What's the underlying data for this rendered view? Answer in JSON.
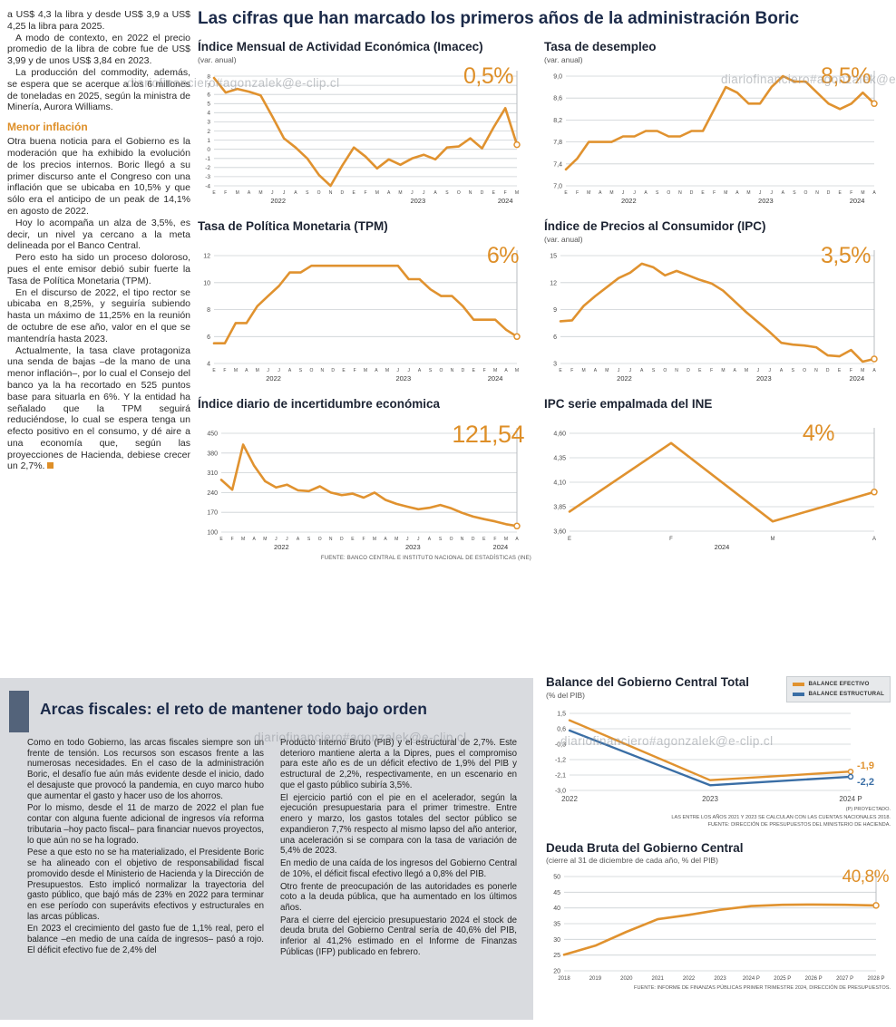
{
  "watermark": "diariofinanciero#agonzalek@e-clip.cl",
  "colors": {
    "accent_orange": "#DE8F28",
    "line_orange": "#E0922F",
    "line_blue": "#3A6EA5",
    "headline_navy": "#1B2A49",
    "panel_gray": "#D9DBDF",
    "titlebar_slate": "#53637A"
  },
  "article": {
    "paragraphs": [
      "a US$ 4,3 la libra y desde US$ 3,9 a US$ 4,25 la libra para 2025.",
      "A modo de contexto, en 2022 el precio promedio de la libra de cobre fue de US$ 3,99 y de unos US$ 3,84 en 2023.",
      "La producción del commodity, además, se espera que se acerque a los 6 millones de toneladas en 2025, según la ministra de Minería, Aurora Williams."
    ],
    "inflation_heading": "Menor inflación",
    "inflation_paragraphs": [
      "Otra buena noticia para el Gobierno es la moderación que ha exhibido la evolución de los precios internos. Boric llegó a su primer discurso ante el Congreso con una inflación que se ubicaba en 10,5% y que sólo era el anticipo de un peak de 14,1% en agosto de 2022.",
      "Hoy lo acompaña un alza de 3,5%, es decir, un nivel ya cercano a la meta delineada por el Banco Central.",
      "Pero esto ha sido un proceso doloroso, pues el ente emisor debió subir fuerte la Tasa de Política Monetaria (TPM).",
      "En el discurso de 2022, el tipo rector se ubicaba en 8,25%, y seguiría subiendo hasta un máximo de 11,25% en la reunión de octubre de ese año, valor en el que se mantendría hasta 2023.",
      "Actualmente, la tasa clave protagoniza una senda de bajas –de la mano de una menor inflación–, por lo cual el Consejo del banco ya la ha recortado en 525 puntos base para situarla en 6%. Y la entidad ha señalado que la TPM seguirá reduciéndose, lo cual se espera tenga un efecto positivo en el consumo, y dé aire a una economía que, según las proyecciones de Hacienda, debiese crecer un 2,7%."
    ]
  },
  "main": {
    "headline": "Las cifras que han marcado los primeros años de la administración Boric",
    "source_top": "FUENTE: BANCO CENTRAL E INSTITUTO NACIONAL DE ESTADÍSTICAS (INE)"
  },
  "fiscal": {
    "title": "Arcas fiscales: el reto de mantener todo bajo orden",
    "col1": [
      "Como en todo Gobierno, las arcas fiscales siempre son un frente de tensión. Los recursos son escasos frente a las numerosas necesidades. En el caso de la administración Boric, el desafío fue aún más evidente desde el inicio, dado el desajuste que provocó la pandemia, en cuyo marco hubo que aumentar el gasto y hacer uso de los ahorros.",
      "Por lo mismo, desde el 11 de marzo de 2022 el plan fue contar con alguna fuente adicional de ingresos vía reforma tributaria –hoy pacto fiscal– para financiar nuevos proyectos, lo que aún no se ha logrado.",
      "Pese a que esto no se ha materializado, el Presidente Boric se ha alineado con el objetivo de responsabilidad fiscal promovido desde el Ministerio de Hacienda y la Dirección de Presupuestos. Esto implicó normalizar la trayectoria del gasto público, que bajó más de 23% en 2022 para terminar en ese período con superávits efectivos y estructurales en las arcas públicas.",
      "En 2023 el crecimiento del gasto fue de 1,1% real, pero el balance –en medio de una caída de ingresos– pasó a rojo. El déficit efectivo fue de 2,4% del"
    ],
    "col2": [
      "Producto Interno Bruto (PIB) y el estructural de 2,7%. Este deterioro mantiene alerta a la Dipres, pues el compromiso para este año es de un déficit efectivo de 1,9% del PIB y estructural de 2,2%, respectivamente, en un escenario en que el gasto público subiría 3,5%.",
      "El ejercicio partió con el pie en el acelerador, según la ejecución presupuestaria para el primer trimestre. Entre enero y marzo, los gastos totales del sector público se expandieron 7,7% respecto al mismo lapso del año anterior, una aceleración si se compara con la tasa de variación de 5,4% de 2023.",
      "En medio de una caída de los ingresos del Gobierno Central de 10%, el déficit fiscal efectivo llegó a 0,8% del PIB.",
      "Otro frente de preocupación de las autoridades es ponerle coto a la deuda pública, que ha aumentado en los últimos años.",
      "Para el cierre del ejercicio presupuestario 2024 el stock de deuda bruta del Gobierno Central sería de 40,6% del PIB, inferior al 41,2% estimado en el Informe de Finanzas Públicas (IFP) publicado en febrero."
    ]
  },
  "legend": [
    {
      "label": "BALANCE EFECTIVO",
      "color": "#E0922F"
    },
    {
      "label": "BALANCE ESTRUCTURAL",
      "color": "#3A6EA5"
    }
  ],
  "balance_notes": [
    "(P) PROYECTADO.",
    "LAS ENTRE LOS AÑOS 2021 Y 2023 SE CALCULAN CON LAS CUENTAS NACIONALES 2018.",
    "FUENTE: DIRECCIÓN DE PRESUPUESTOS DEL MINISTERIO DE HACIENDA."
  ],
  "deuda_source": "FUENTE: INFORME DE FINANZAS PÚBLICAS PRIMER TRIMESTRE 2024, DIRECCIÓN DE PRESUPUESTOS.",
  "chart_data": [
    {
      "type": "line",
      "title": "Índice Mensual de Actividad Económica (Imacec)",
      "subtitle": "(var. anual)",
      "callout": "0,5%",
      "color": "#E0922F",
      "ylim": [
        -4,
        8
      ],
      "yticks": [
        {
          "v": 8,
          "l": "8"
        },
        {
          "v": 7,
          "l": "7"
        },
        {
          "v": 6,
          "l": "6"
        },
        {
          "v": 5,
          "l": "5"
        },
        {
          "v": 4,
          "l": "4"
        },
        {
          "v": 3,
          "l": "3"
        },
        {
          "v": 2,
          "l": "2"
        },
        {
          "v": 1,
          "l": "1"
        },
        {
          "v": 0,
          "l": "0"
        },
        {
          "v": -1,
          "l": "-1"
        },
        {
          "v": -2,
          "l": "-2"
        },
        {
          "v": -3,
          "l": "-3"
        },
        {
          "v": -4,
          "l": "-4"
        }
      ],
      "xlabels": [
        "E",
        "F",
        "M",
        "A",
        "M",
        "J",
        "J",
        "A",
        "S",
        "O",
        "N",
        "D",
        "E",
        "F",
        "M",
        "A",
        "M",
        "J",
        "J",
        "A",
        "S",
        "O",
        "N",
        "D",
        "E",
        "F",
        "M"
      ],
      "years": [
        {
          "label": "2022",
          "from": 0,
          "to": 11
        },
        {
          "label": "2023",
          "from": 12,
          "to": 23
        },
        {
          "label": "2024",
          "from": 24,
          "to": 26
        }
      ],
      "values": [
        7.8,
        6.2,
        6.6,
        6.3,
        5.9,
        3.6,
        1.2,
        0.2,
        -1.0,
        -2.8,
        -4.0,
        -1.8,
        0.2,
        -0.8,
        -2.1,
        -1.1,
        -1.7,
        -1.0,
        -0.6,
        -1.1,
        0.2,
        0.3,
        1.2,
        0.1,
        2.4,
        4.5,
        0.5
      ]
    },
    {
      "type": "line",
      "title": "Tasa de desempleo",
      "subtitle": "(var. anual)",
      "callout": "8,5%",
      "color": "#E0922F",
      "ylim": [
        7.0,
        9.0
      ],
      "yticks": [
        {
          "v": 9.0,
          "l": "9,0"
        },
        {
          "v": 8.6,
          "l": "8,6"
        },
        {
          "v": 8.2,
          "l": "8,2"
        },
        {
          "v": 7.8,
          "l": "7,8"
        },
        {
          "v": 7.4,
          "l": "7,4"
        },
        {
          "v": 7.0,
          "l": "7,0"
        }
      ],
      "xlabels": [
        "E",
        "F",
        "M",
        "A",
        "M",
        "J",
        "J",
        "A",
        "S",
        "O",
        "N",
        "D",
        "E",
        "F",
        "M",
        "A",
        "M",
        "J",
        "J",
        "A",
        "S",
        "O",
        "N",
        "D",
        "E",
        "F",
        "M",
        "A"
      ],
      "years": [
        {
          "label": "2022",
          "from": 0,
          "to": 11
        },
        {
          "label": "2023",
          "from": 12,
          "to": 23
        },
        {
          "label": "2024",
          "from": 24,
          "to": 27
        }
      ],
      "values": [
        7.3,
        7.5,
        7.8,
        7.8,
        7.8,
        7.9,
        7.9,
        8.0,
        8.0,
        7.9,
        7.9,
        8.0,
        8.0,
        8.4,
        8.8,
        8.7,
        8.5,
        8.5,
        8.8,
        9.0,
        8.9,
        8.9,
        8.7,
        8.5,
        8.4,
        8.5,
        8.7,
        8.5
      ]
    },
    {
      "type": "line",
      "title": "Tasa de Política Monetaria (TPM)",
      "subtitle": "",
      "callout": "6%",
      "color": "#E0922F",
      "ylim": [
        4,
        12
      ],
      "yticks": [
        {
          "v": 12,
          "l": "12"
        },
        {
          "v": 10,
          "l": "10"
        },
        {
          "v": 8,
          "l": "8"
        },
        {
          "v": 6,
          "l": "6"
        },
        {
          "v": 4,
          "l": "4"
        }
      ],
      "xlabels": [
        "E",
        "F",
        "M",
        "A",
        "M",
        "J",
        "J",
        "A",
        "S",
        "O",
        "N",
        "D",
        "E",
        "F",
        "M",
        "A",
        "M",
        "J",
        "J",
        "A",
        "S",
        "O",
        "N",
        "D",
        "E",
        "F",
        "M",
        "A",
        "M"
      ],
      "years": [
        {
          "label": "2022",
          "from": 0,
          "to": 11
        },
        {
          "label": "2023",
          "from": 12,
          "to": 23
        },
        {
          "label": "2024",
          "from": 24,
          "to": 28
        }
      ],
      "values": [
        5.5,
        5.5,
        7.0,
        7.0,
        8.25,
        9.0,
        9.75,
        10.75,
        10.75,
        11.25,
        11.25,
        11.25,
        11.25,
        11.25,
        11.25,
        11.25,
        11.25,
        11.25,
        10.25,
        10.25,
        9.5,
        9.0,
        9.0,
        8.25,
        7.25,
        7.25,
        7.25,
        6.5,
        6.0
      ]
    },
    {
      "type": "line",
      "title": "Índice de Precios al Consumidor (IPC)",
      "subtitle": "(var. anual)",
      "callout": "3,5%",
      "color": "#E0922F",
      "ylim": [
        3,
        15
      ],
      "yticks": [
        {
          "v": 15,
          "l": "15"
        },
        {
          "v": 12,
          "l": "12"
        },
        {
          "v": 9,
          "l": "9"
        },
        {
          "v": 6,
          "l": "6"
        },
        {
          "v": 3,
          "l": "3"
        }
      ],
      "xlabels": [
        "E",
        "F",
        "M",
        "A",
        "M",
        "J",
        "J",
        "A",
        "S",
        "O",
        "N",
        "D",
        "E",
        "F",
        "M",
        "A",
        "M",
        "J",
        "J",
        "A",
        "S",
        "O",
        "N",
        "D",
        "E",
        "F",
        "M",
        "A"
      ],
      "years": [
        {
          "label": "2022",
          "from": 0,
          "to": 11
        },
        {
          "label": "2023",
          "from": 12,
          "to": 23
        },
        {
          "label": "2024",
          "from": 24,
          "to": 27
        }
      ],
      "values": [
        7.7,
        7.8,
        9.4,
        10.5,
        11.5,
        12.5,
        13.1,
        14.1,
        13.7,
        12.8,
        13.3,
        12.8,
        12.3,
        11.9,
        11.1,
        9.9,
        8.7,
        7.6,
        6.5,
        5.3,
        5.1,
        5.0,
        4.8,
        3.9,
        3.8,
        4.5,
        3.2,
        3.5
      ]
    },
    {
      "type": "line",
      "title": "Índice diario de incertidumbre económica",
      "subtitle": "",
      "callout": "121,54",
      "color": "#E0922F",
      "ylim": [
        100,
        450
      ],
      "yticks": [
        {
          "v": 450,
          "l": "450"
        },
        {
          "v": 380,
          "l": "380"
        },
        {
          "v": 310,
          "l": "310"
        },
        {
          "v": 240,
          "l": "240"
        },
        {
          "v": 170,
          "l": "170"
        },
        {
          "v": 100,
          "l": "100"
        }
      ],
      "xlabels": [
        "E",
        "F",
        "M",
        "A",
        "M",
        "J",
        "J",
        "A",
        "S",
        "O",
        "N",
        "D",
        "E",
        "F",
        "M",
        "A",
        "M",
        "J",
        "J",
        "A",
        "S",
        "O",
        "N",
        "D",
        "E",
        "F",
        "M",
        "A"
      ],
      "years": [
        {
          "label": "2022",
          "from": 0,
          "to": 11
        },
        {
          "label": "2023",
          "from": 12,
          "to": 23
        },
        {
          "label": "2024",
          "from": 24,
          "to": 27
        }
      ],
      "values": [
        285,
        250,
        410,
        335,
        280,
        258,
        268,
        248,
        245,
        262,
        240,
        231,
        236,
        222,
        240,
        214,
        200,
        190,
        181,
        186,
        196,
        184,
        168,
        155,
        146,
        138,
        128,
        121.54
      ]
    },
    {
      "type": "line",
      "title": "IPC serie empalmada del INE",
      "subtitle": "",
      "callout": "4%",
      "color": "#E0922F",
      "ylim": [
        3.6,
        4.6
      ],
      "yticks": [
        {
          "v": 4.6,
          "l": "4,60"
        },
        {
          "v": 4.35,
          "l": "4,35"
        },
        {
          "v": 4.1,
          "l": "4,10"
        },
        {
          "v": 3.85,
          "l": "3,85"
        },
        {
          "v": 3.6,
          "l": "3,60"
        }
      ],
      "xlabels": [
        "E",
        "F",
        "M",
        "A"
      ],
      "years": [
        {
          "label": "2024",
          "from": 0,
          "to": 3
        }
      ],
      "values": [
        3.8,
        4.5,
        3.7,
        4.0
      ]
    },
    {
      "type": "line",
      "title": "Balance del Gobierno Central Total",
      "subtitle": "(% del PIB)",
      "ylim": [
        -3.0,
        1.5
      ],
      "yticks": [
        {
          "v": 1.5,
          "l": "1,5"
        },
        {
          "v": 0.6,
          "l": "0,6"
        },
        {
          "v": -0.3,
          "l": "-0,3"
        },
        {
          "v": -1.2,
          "l": "-1,2"
        },
        {
          "v": -2.1,
          "l": "-2,1"
        },
        {
          "v": -3.0,
          "l": "-3,0"
        }
      ],
      "xlabels": [
        "2022",
        "2023",
        "2024 P"
      ],
      "series": [
        {
          "name": "Balance Efectivo",
          "color": "#E0922F",
          "values": [
            1.1,
            -2.4,
            -1.9
          ],
          "end_label": "-1,9",
          "end_label_dy": -3
        },
        {
          "name": "Balance Estructural",
          "color": "#3A6EA5",
          "values": [
            0.5,
            -2.7,
            -2.2
          ],
          "end_label": "-2,2",
          "end_label_dy": 9
        }
      ]
    },
    {
      "type": "line",
      "title": "Deuda Bruta del Gobierno Central",
      "subtitle": "(cierre al 31 de diciembre de cada año, % del PIB)",
      "callout": "40,8%",
      "color": "#E0922F",
      "ylim": [
        20,
        50
      ],
      "yticks": [
        {
          "v": 50,
          "l": "50"
        },
        {
          "v": 45,
          "l": "45"
        },
        {
          "v": 40,
          "l": "40"
        },
        {
          "v": 35,
          "l": "35"
        },
        {
          "v": 30,
          "l": "30"
        },
        {
          "v": 25,
          "l": "25"
        },
        {
          "v": 20,
          "l": "20"
        }
      ],
      "xlabels": [
        "2018",
        "2019",
        "2020",
        "2021",
        "2022",
        "2023",
        "2024 P",
        "2025 P",
        "2026 P",
        "2027 P",
        "2028 P"
      ],
      "values": [
        25.1,
        28.0,
        32.4,
        36.4,
        37.8,
        39.4,
        40.6,
        41.0,
        41.1,
        41.0,
        40.8
      ]
    }
  ]
}
